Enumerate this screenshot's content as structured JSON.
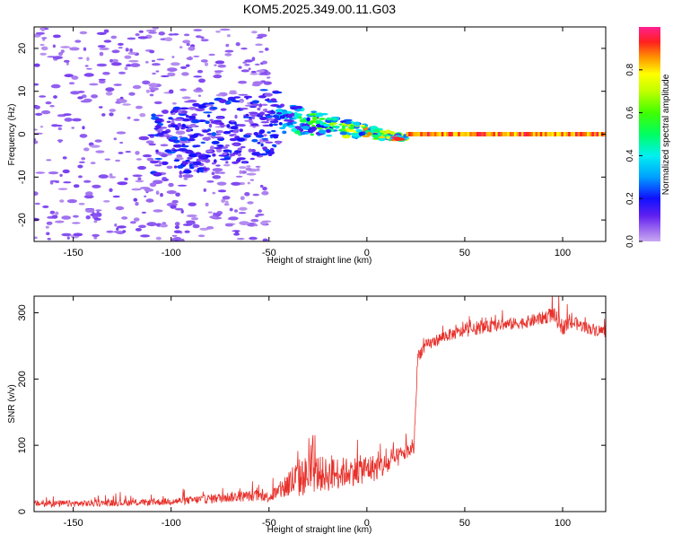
{
  "chart_data": [
    {
      "type": "heatmap",
      "title": "KOM5.2025.349.00.11.G03",
      "xlabel": "Height of straight line (km)",
      "ylabel": "Frequency (Hz)",
      "xlim": [
        -170,
        122
      ],
      "ylim": [
        -25,
        25
      ],
      "xticks": [
        -150,
        -100,
        -50,
        0,
        50,
        100
      ],
      "yticks": [
        -20,
        -10,
        0,
        10,
        20
      ],
      "colorbar": {
        "label": "Normalized spectral amplitude",
        "range": [
          0,
          1
        ],
        "ticks": [
          "0.0",
          "0.2",
          "0.4",
          "0.6",
          "0.8"
        ]
      },
      "features": [
        {
          "name": "scattered low-amplitude noise",
          "x_range": [
            -170,
            -50
          ],
          "freq_range": [
            -25,
            25
          ],
          "amplitude": 0.05
        },
        {
          "name": "diffuse medium-amplitude cloud",
          "x_range": [
            -110,
            -45
          ],
          "freq_range": [
            -8,
            8
          ],
          "amplitude": 0.15
        },
        {
          "name": "converging band",
          "x_range": [
            -45,
            20
          ],
          "freq_range": [
            -3,
            10
          ],
          "amplitude": 0.35
        },
        {
          "name": "strong line at 0 Hz",
          "x_range": [
            20,
            122
          ],
          "freq": 0,
          "amplitude": 0.9
        }
      ]
    },
    {
      "type": "line",
      "xlabel": "Height of straight line (km)",
      "ylabel": "SNR (v/v)",
      "xlim": [
        -170,
        122
      ],
      "ylim": [
        0,
        325
      ],
      "xticks": [
        -150,
        -100,
        -50,
        0,
        50,
        100
      ],
      "yticks": [
        0,
        100,
        200,
        300
      ],
      "series": [
        {
          "name": "SNR",
          "color": "#e8302a",
          "x": [
            -170,
            -150,
            -130,
            -110,
            -90,
            -70,
            -55,
            -50,
            -45,
            -40,
            -35,
            -30,
            -25,
            -20,
            -15,
            -10,
            -5,
            0,
            5,
            10,
            15,
            20,
            24,
            26,
            30,
            40,
            50,
            60,
            70,
            80,
            90,
            95,
            100,
            105,
            110,
            115,
            122
          ],
          "values": [
            12,
            12,
            13,
            14,
            17,
            22,
            24,
            22,
            30,
            42,
            50,
            55,
            58,
            55,
            58,
            60,
            62,
            65,
            66,
            70,
            80,
            90,
            95,
            235,
            250,
            265,
            272,
            278,
            282,
            285,
            292,
            298,
            278,
            285,
            280,
            275,
            272
          ],
          "noise_amplitude": [
            5,
            5,
            5,
            5,
            6,
            8,
            8,
            8,
            12,
            25,
            30,
            30,
            28,
            25,
            25,
            22,
            22,
            22,
            20,
            18,
            15,
            12,
            10,
            10,
            9,
            9,
            9,
            9,
            9,
            9,
            10,
            12,
            12,
            10,
            9,
            9,
            9
          ]
        }
      ]
    }
  ]
}
